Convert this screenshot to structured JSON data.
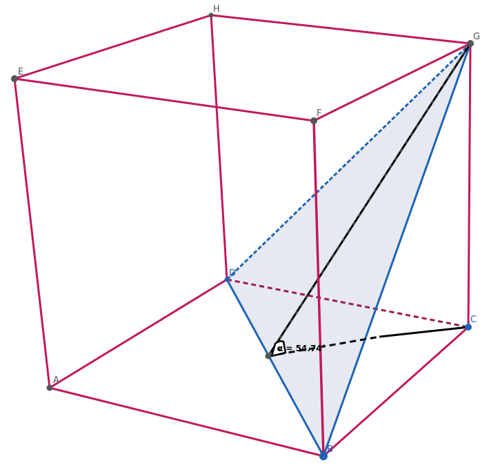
{
  "vertices": {
    "A": {
      "label": "A"
    },
    "B": {
      "label": "B"
    },
    "C": {
      "label": "C"
    },
    "D": {
      "label": "D"
    },
    "E": {
      "label": "E"
    },
    "F": {
      "label": "F"
    },
    "G": {
      "label": "G"
    },
    "H": {
      "label": "H"
    }
  },
  "angle": {
    "label": "α = 54.74°"
  },
  "colors": {
    "cube_edge": "#c2185b",
    "plane_edge": "#1e64b4",
    "plane_fill": "#e6e9f1",
    "vertex_dark": "#555555",
    "vertex_blue": "#1e64b4",
    "construction": "#000000"
  }
}
